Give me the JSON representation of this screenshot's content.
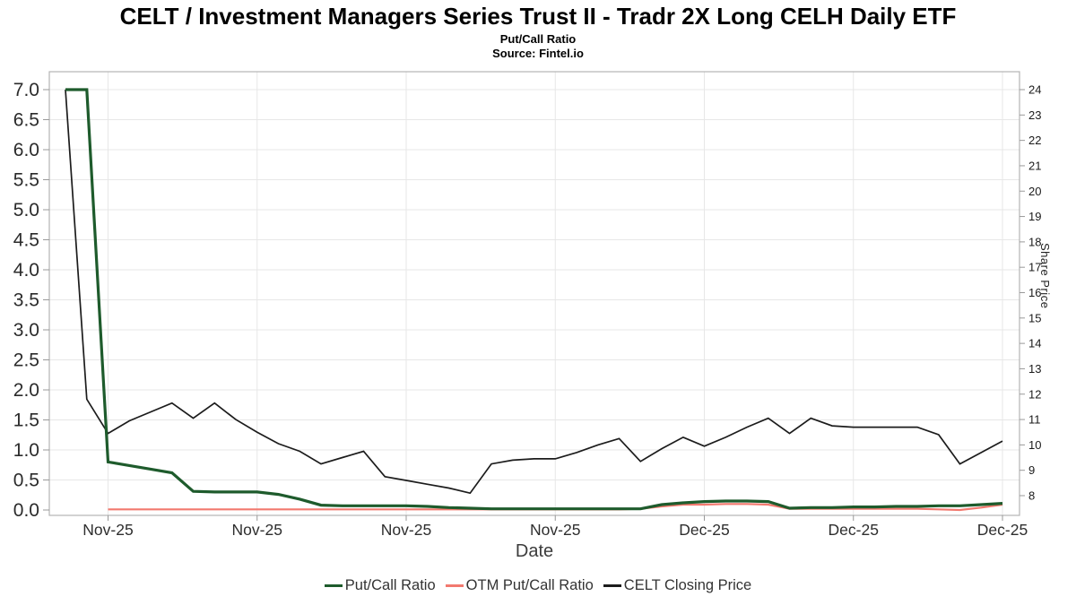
{
  "header": {
    "title": "CELT / Investment Managers Series Trust II - Tradr 2X Long CELH Daily ETF",
    "subtitle": "Put/Call Ratio",
    "source": "Source: Fintel.io"
  },
  "axes": {
    "x_label": "Date",
    "y_right_label": "Share Price"
  },
  "legend": [
    {
      "label": "Put/Call Ratio",
      "color": "#1e5b2c"
    },
    {
      "label": "OTM Put/Call Ratio",
      "color": "#f2796f"
    },
    {
      "label": "CELT Closing Price",
      "color": "#1c1c1c"
    }
  ],
  "chart_data": {
    "type": "line",
    "title": "CELT / Investment Managers Series Trust II - Tradr 2X Long CELH Daily ETF",
    "subtitle": "Put/Call Ratio",
    "source_note": "Source: Fintel.io",
    "xlabel": "Date",
    "ylabel_right": "Share Price",
    "grid": true,
    "x_tick_labels": [
      "Nov-25",
      "Nov-25",
      "Nov-25",
      "Nov-25",
      "Dec-25",
      "Dec-25",
      "Dec-25"
    ],
    "x_tick_indices": [
      2,
      9,
      16,
      23,
      30,
      37,
      44
    ],
    "left_axis": {
      "min": 0.0,
      "max": 7.0,
      "step": 0.5
    },
    "right_axis": {
      "min": 8,
      "max": 24,
      "step": 1
    },
    "series": [
      {
        "name": "Put/Call Ratio",
        "axis": "left",
        "color": "#1e5b2c",
        "width": 3.2,
        "values": [
          7.0,
          7.0,
          0.8,
          0.74,
          0.68,
          0.62,
          0.31,
          0.3,
          0.3,
          0.3,
          0.26,
          0.18,
          0.08,
          0.07,
          0.07,
          0.07,
          0.07,
          0.06,
          0.04,
          0.03,
          0.02,
          0.02,
          0.02,
          0.02,
          0.02,
          0.02,
          0.02,
          0.02,
          0.09,
          0.12,
          0.14,
          0.15,
          0.15,
          0.14,
          0.03,
          0.04,
          0.04,
          0.05,
          0.05,
          0.06,
          0.06,
          0.07,
          0.07,
          0.09,
          0.11
        ]
      },
      {
        "name": "OTM Put/Call Ratio",
        "axis": "left",
        "color": "#f2796f",
        "width": 2.2,
        "values": [
          null,
          null,
          0.01,
          0.01,
          0.01,
          0.01,
          0.01,
          0.01,
          0.01,
          0.01,
          0.01,
          0.01,
          0.01,
          0.01,
          0.01,
          0.01,
          0.01,
          0.01,
          0.01,
          0.01,
          0.01,
          0.01,
          0.01,
          0.01,
          0.01,
          0.01,
          0.01,
          0.02,
          0.06,
          0.09,
          0.09,
          0.1,
          0.1,
          0.09,
          0.02,
          0.02,
          0.02,
          0.02,
          0.02,
          0.02,
          0.02,
          0.01,
          0.0,
          0.04,
          0.09
        ]
      },
      {
        "name": "CELT Closing Price",
        "axis": "right",
        "color": "#1c1c1c",
        "width": 1.7,
        "values": [
          24.0,
          11.8,
          10.45,
          10.95,
          11.3,
          11.65,
          11.05,
          11.65,
          11.0,
          10.5,
          10.05,
          9.75,
          9.25,
          9.5,
          9.75,
          8.75,
          8.6,
          8.45,
          8.3,
          8.1,
          9.25,
          9.4,
          9.45,
          9.45,
          9.7,
          10.0,
          10.25,
          9.35,
          9.85,
          10.3,
          9.95,
          10.3,
          10.7,
          11.05,
          10.45,
          11.05,
          10.75,
          10.7,
          10.7,
          10.7,
          10.7,
          10.4,
          9.25,
          9.7,
          10.15
        ]
      }
    ]
  }
}
